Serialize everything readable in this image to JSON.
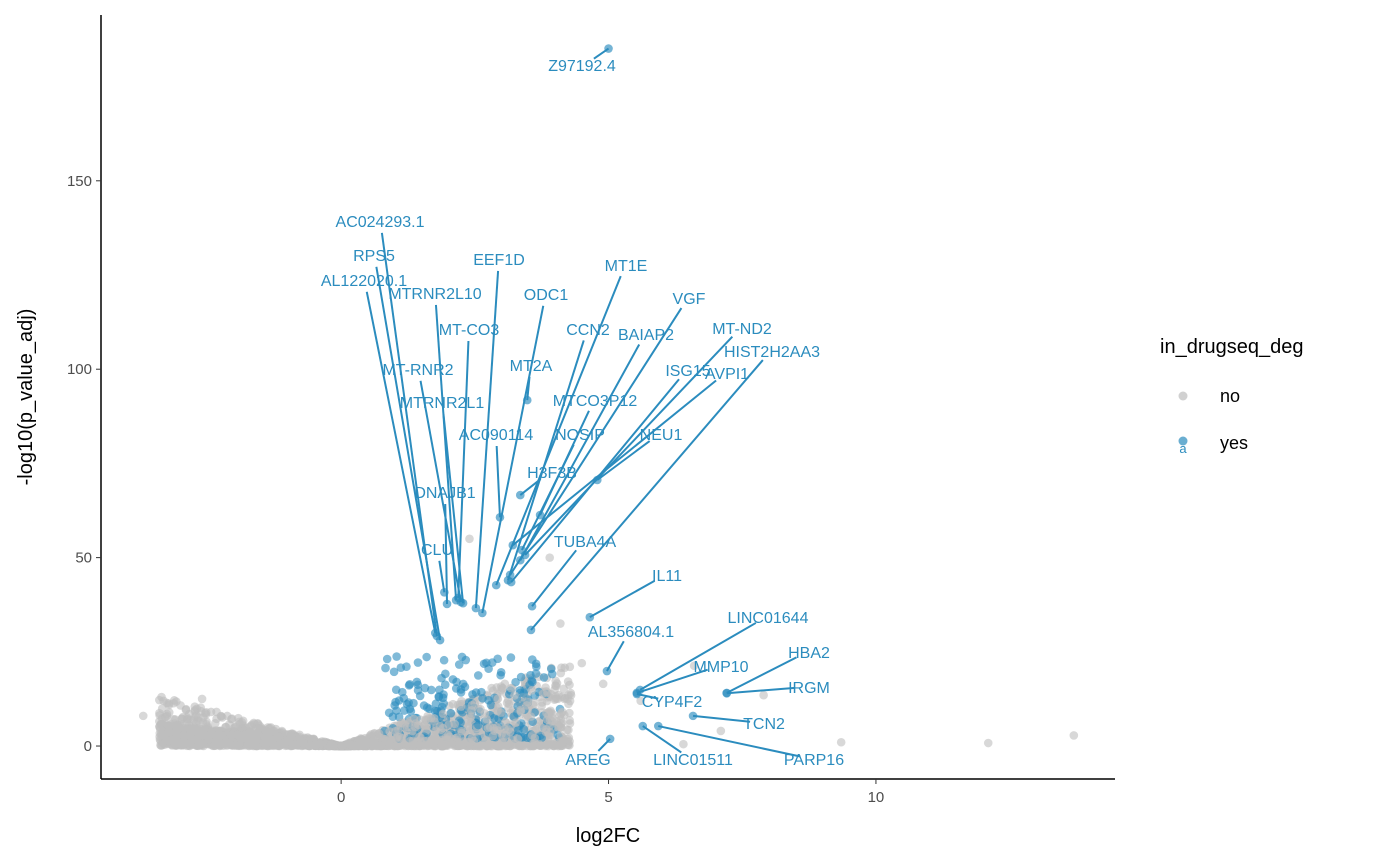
{
  "chart_data": {
    "type": "scatter",
    "title": "",
    "xlabel": "log2FC",
    "ylabel": "-log10(p_value_adj)",
    "xlim": [
      -4.49,
      14.47
    ],
    "ylim": [
      -8.75,
      194
    ],
    "x_ticks": [
      0,
      5,
      10
    ],
    "y_ticks": [
      0,
      50,
      100,
      150
    ],
    "grid": false,
    "legend": {
      "title": "in_drugseq_deg",
      "placement": "right",
      "entries": [
        {
          "name": "no",
          "color": "#BEBEBE"
        },
        {
          "name": "yes",
          "color": "#2B8CBE"
        }
      ]
    },
    "series": [
      {
        "name": "no",
        "color": "#BEBEBE",
        "points": [
          {
            "x": 9.35,
            "y": 1.0
          },
          {
            "x": 12.1,
            "y": 0.8
          },
          {
            "x": 13.7,
            "y": 2.8
          },
          {
            "x": -3.7,
            "y": 8.0
          },
          {
            "x": -2.6,
            "y": 12.5
          },
          {
            "x": 7.9,
            "y": 13.5
          },
          {
            "x": 6.6,
            "y": 21.3
          },
          {
            "x": 4.5,
            "y": 22.0
          },
          {
            "x": 3.9,
            "y": 50.0
          },
          {
            "x": 4.9,
            "y": 16.5
          },
          {
            "x": 6.4,
            "y": 0.5
          },
          {
            "x": 7.1,
            "y": 4.0
          },
          {
            "x": 5.6,
            "y": 12.0
          },
          {
            "x": 4.1,
            "y": 32.5
          },
          {
            "x": 2.4,
            "y": 55.0
          }
        ]
      },
      {
        "name": "yes",
        "color": "#2B8CBE",
        "points": [
          {
            "gene": "Z97192.4",
            "x": 5.0,
            "y": 185.1
          },
          {
            "gene": "AC024293.1",
            "x": 1.79,
            "y": 29.2
          },
          {
            "gene": "RPS5",
            "x": 1.85,
            "y": 28.1
          },
          {
            "gene": "AL122020.1",
            "x": 1.76,
            "y": 30.0
          },
          {
            "gene": "MTRNR2L10",
            "x": 2.15,
            "y": 38.7
          },
          {
            "gene": "EEF1D",
            "x": 2.52,
            "y": 36.6
          },
          {
            "gene": "ODC1",
            "x": 2.64,
            "y": 35.3
          },
          {
            "gene": "MT1E",
            "x": 2.9,
            "y": 42.7
          },
          {
            "gene": "MT-CO3",
            "x": 2.19,
            "y": 39.3
          },
          {
            "gene": "CCN2",
            "x": 3.12,
            "y": 44.0
          },
          {
            "gene": "VGF",
            "x": 3.16,
            "y": 45.4
          },
          {
            "gene": "BAIAP2",
            "x": 3.35,
            "y": 49.3
          },
          {
            "gene": "MT-ND2",
            "x": 3.44,
            "y": 50.7
          },
          {
            "gene": "HIST2H2AA3",
            "x": 3.55,
            "y": 30.8
          },
          {
            "gene": "ISG15",
            "x": 3.18,
            "y": 43.5
          },
          {
            "gene": "AVPI1",
            "x": 3.21,
            "y": 53.3
          },
          {
            "gene": "MT-RNR2",
            "x": 2.24,
            "y": 38.2
          },
          {
            "gene": "MT2A",
            "x": 3.48,
            "y": 91.8
          },
          {
            "gene": "MTRNR2L1",
            "x": 2.28,
            "y": 37.9
          },
          {
            "gene": "MTCO3P12",
            "x": 3.72,
            "y": 61.3
          },
          {
            "gene": "AC090114",
            "x": 2.97,
            "y": 60.7
          },
          {
            "gene": "NOSIP",
            "x": 3.38,
            "y": 52.0
          },
          {
            "gene": "NEU1",
            "x": 4.79,
            "y": 70.6
          },
          {
            "gene": "H3F3B",
            "x": 3.35,
            "y": 66.6
          },
          {
            "gene": "DNAJB1",
            "x": 1.98,
            "y": 37.7
          },
          {
            "gene": "CLU",
            "x": 1.93,
            "y": 40.8
          },
          {
            "gene": "TUBA4A",
            "x": 3.57,
            "y": 37.1
          },
          {
            "gene": "IL11",
            "x": 4.65,
            "y": 34.2
          },
          {
            "gene": "AL356804.1",
            "x": 4.97,
            "y": 19.9
          },
          {
            "gene": "LINC01644",
            "x": 5.59,
            "y": 14.9
          },
          {
            "gene": "MMP10",
            "x": 5.53,
            "y": 14.1
          },
          {
            "gene": "HBA2",
            "x": 7.21,
            "y": 14.1
          },
          {
            "gene": "IRGM",
            "x": 7.21,
            "y": 14.0
          },
          {
            "gene": "CYP4F2",
            "x": 5.53,
            "y": 13.8
          },
          {
            "gene": "TCN2",
            "x": 6.58,
            "y": 8.0
          },
          {
            "gene": "AREG",
            "x": 5.03,
            "y": 1.9
          },
          {
            "gene": "LINC01511",
            "x": 5.64,
            "y": 5.3
          },
          {
            "gene": "PARP16",
            "x": 5.93,
            "y": 5.3
          }
        ]
      }
    ]
  }
}
